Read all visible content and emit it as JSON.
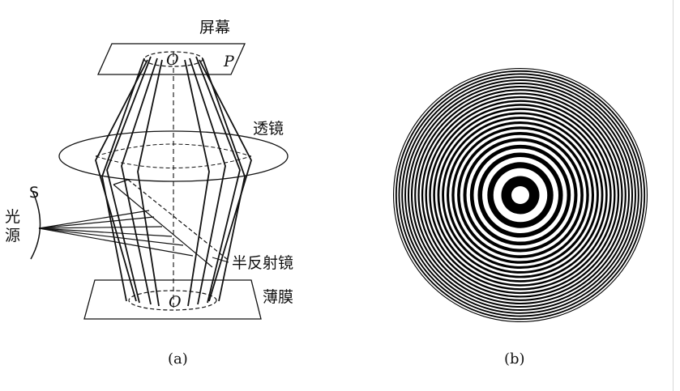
{
  "diagram_a": {
    "screen_label": "屏幕",
    "screen_point": "O",
    "screen_plane": "P",
    "lens_label": "透镜",
    "source_letter": "S",
    "source_label_1": "光",
    "source_label_2": "源",
    "mirror_label": "半反射镜",
    "film_label": "薄膜",
    "film_point": "O",
    "caption": "(a)"
  },
  "diagram_b": {
    "caption": "(b)",
    "ring_color": "#000000",
    "background_color": "#ffffff"
  }
}
